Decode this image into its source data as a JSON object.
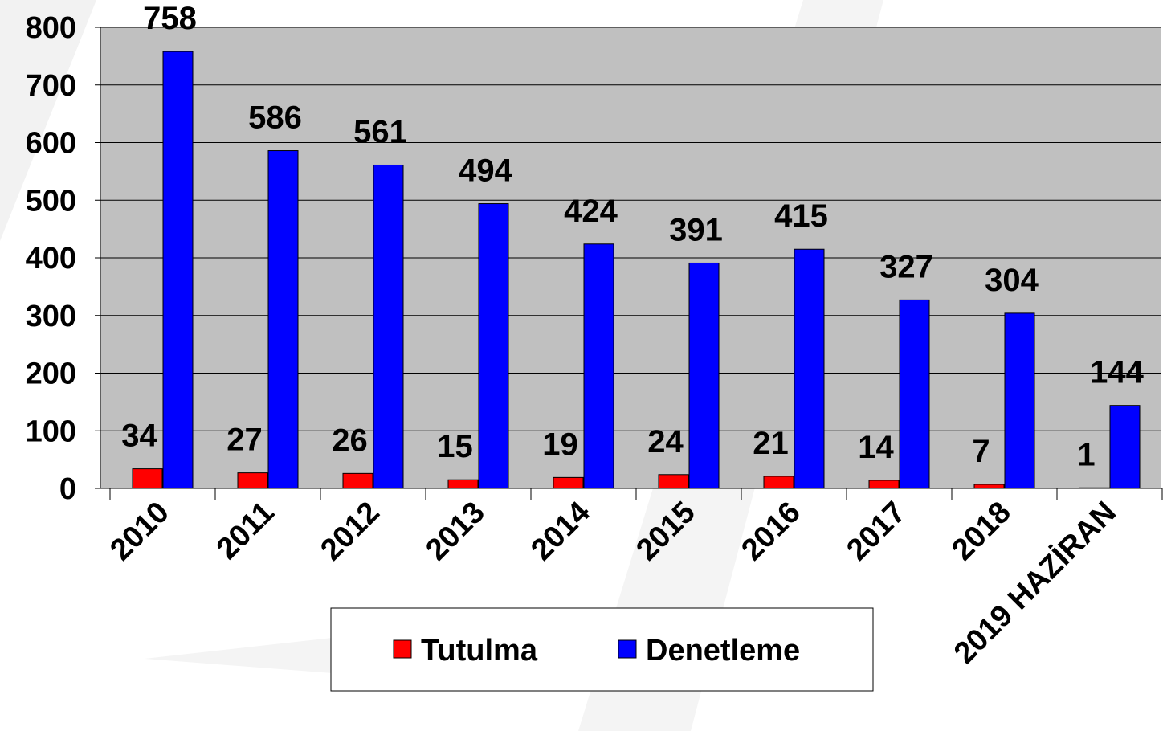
{
  "chart_data": {
    "type": "bar",
    "categories": [
      "2010",
      "2011",
      "2012",
      "2013",
      "2014",
      "2015",
      "2016",
      "2017",
      "2018",
      "2019 HAZİRAN"
    ],
    "series": [
      {
        "name": "Tutulma",
        "color": "#ff0000",
        "values": [
          34,
          27,
          26,
          15,
          19,
          24,
          21,
          14,
          7,
          1
        ]
      },
      {
        "name": "Denetleme",
        "color": "#0000ff",
        "values": [
          758,
          586,
          561,
          494,
          424,
          391,
          415,
          327,
          304,
          144
        ]
      }
    ],
    "ylim": [
      0,
      800
    ],
    "yticks": [
      0,
      100,
      200,
      300,
      400,
      500,
      600,
      700,
      800
    ],
    "grid": true
  }
}
